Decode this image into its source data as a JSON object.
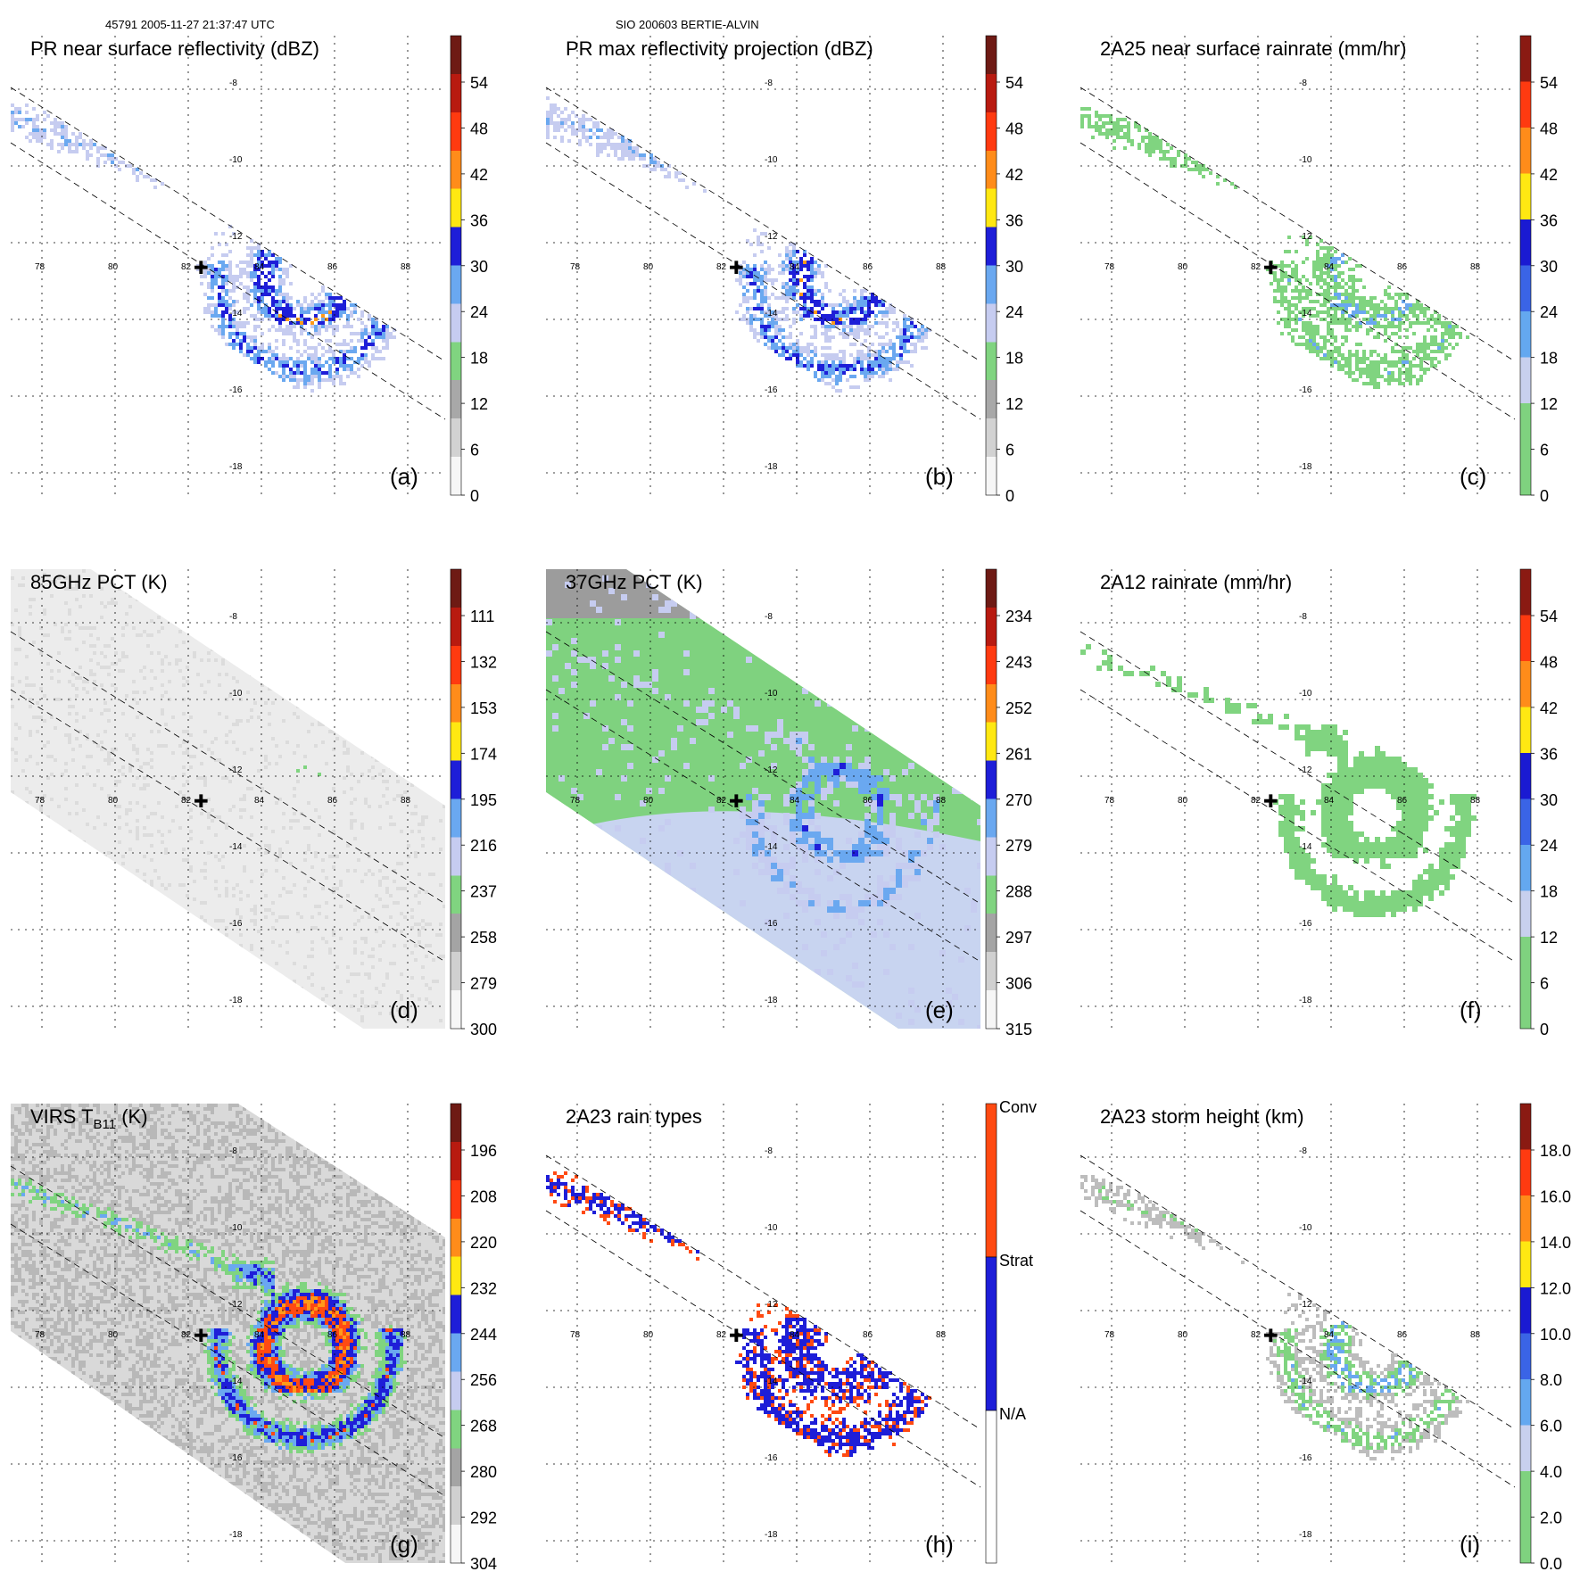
{
  "header": {
    "left": "45791 2005-11-27 21:37:47 UTC",
    "center": "SIO 200603 BERTIE-ALVIN"
  },
  "chart_data": [
    {
      "type": "heatmap",
      "id": "a",
      "title": "PR near surface reflectivity (dBZ)",
      "panel_label": "(a)",
      "field": "pr",
      "colorbar": {
        "labels": [
          "54",
          "48",
          "42",
          "36",
          "30",
          "24",
          "18",
          "12",
          "6",
          "0"
        ],
        "range": [
          0,
          60
        ]
      },
      "lon_ticks": [
        "78",
        "80",
        "82",
        "84",
        "86",
        "88"
      ],
      "lat_ticks": [
        "-8",
        "-10",
        "-12",
        "-14",
        "-16",
        "-18"
      ],
      "storm_center_lon": 83,
      "storm_center_lat": -12.5
    },
    {
      "type": "heatmap",
      "id": "b",
      "title": "PR max reflectivity projection (dBZ)",
      "panel_label": "(b)",
      "field": "pr",
      "colorbar": {
        "labels": [
          "54",
          "48",
          "42",
          "36",
          "30",
          "24",
          "18",
          "12",
          "6",
          "0"
        ],
        "range": [
          0,
          60
        ]
      },
      "lon_ticks": [
        "78",
        "80",
        "82",
        "84",
        "86",
        "88"
      ],
      "lat_ticks": [
        "-8",
        "-10",
        "-12",
        "-14",
        "-16",
        "-18"
      ],
      "storm_center_lon": 83,
      "storm_center_lat": -12.5
    },
    {
      "type": "heatmap",
      "id": "c",
      "title": "2A25 near surface rainrate (mm/hr)",
      "panel_label": "(c)",
      "field": "pr",
      "colorbar": {
        "labels": [
          "54",
          "48",
          "42",
          "36",
          "30",
          "24",
          "18",
          "12",
          "6",
          "0"
        ],
        "range": [
          0,
          60
        ]
      },
      "lon_ticks": [
        "78",
        "80",
        "82",
        "84",
        "86",
        "88"
      ],
      "lat_ticks": [
        "-8",
        "-10",
        "-12",
        "-14",
        "-16",
        "-18"
      ],
      "storm_center_lon": 83,
      "storm_center_lat": -12.5
    },
    {
      "type": "heatmap",
      "id": "d",
      "title": "85GHz PCT (K)",
      "panel_label": "(d)",
      "field": "tmi85",
      "colorbar": {
        "labels": [
          "111",
          "132",
          "153",
          "174",
          "195",
          "216",
          "237",
          "258",
          "279",
          "300"
        ],
        "range": [
          300,
          90
        ]
      },
      "lon_ticks": [
        "78",
        "80",
        "82",
        "84",
        "86",
        "88"
      ],
      "lat_ticks": [
        "-8",
        "-10",
        "-12",
        "-14",
        "-16",
        "-18"
      ],
      "storm_center_lon": 83,
      "storm_center_lat": -12.5
    },
    {
      "type": "heatmap",
      "id": "e",
      "title": "37GHz PCT (K)",
      "panel_label": "(e)",
      "field": "tmi37",
      "colorbar": {
        "labels": [
          "234",
          "243",
          "252",
          "261",
          "270",
          "279",
          "288",
          "297",
          "306",
          "315"
        ],
        "range": [
          315,
          225
        ]
      },
      "lon_ticks": [
        "78",
        "80",
        "82",
        "84",
        "86",
        "88"
      ],
      "lat_ticks": [
        "-8",
        "-10",
        "-12",
        "-14",
        "-16",
        "-18"
      ],
      "storm_center_lon": 83,
      "storm_center_lat": -12.5
    },
    {
      "type": "heatmap",
      "id": "f",
      "title": "2A12 rainrate (mm/hr)",
      "panel_label": "(f)",
      "field": "rain12",
      "colorbar": {
        "labels": [
          "54",
          "48",
          "42",
          "36",
          "30",
          "24",
          "18",
          "12",
          "6",
          "0"
        ],
        "range": [
          0,
          60
        ]
      },
      "lon_ticks": [
        "78",
        "80",
        "82",
        "84",
        "86",
        "88"
      ],
      "lat_ticks": [
        "-8",
        "-10",
        "-12",
        "-14",
        "-16",
        "-18"
      ],
      "storm_center_lon": 83,
      "storm_center_lat": -12.5
    },
    {
      "type": "heatmap",
      "id": "g",
      "title_main": "VIRS T",
      "title_sub": "B11",
      "title_unit": " (K)",
      "panel_label": "(g)",
      "field": "virs",
      "colorbar": {
        "labels": [
          "196",
          "208",
          "220",
          "232",
          "244",
          "256",
          "268",
          "280",
          "292",
          "304"
        ],
        "range": [
          304,
          184
        ]
      },
      "lon_ticks": [
        "78",
        "80",
        "82",
        "84",
        "86",
        "88"
      ],
      "lat_ticks": [
        "-8",
        "-10",
        "-12",
        "-14",
        "-16",
        "-18"
      ],
      "storm_center_lon": 83,
      "storm_center_lat": -12.5
    },
    {
      "type": "heatmap",
      "id": "h",
      "title": "2A23 rain types",
      "panel_label": "(h)",
      "field": "types",
      "colorbar": {
        "labels": [
          "Conv",
          "Strat",
          "N/A"
        ],
        "categorical": true
      },
      "lon_ticks": [
        "78",
        "80",
        "82",
        "84",
        "86",
        "88"
      ],
      "lat_ticks": [
        "-8",
        "-10",
        "-12",
        "-14",
        "-16",
        "-18"
      ],
      "storm_center_lon": 83,
      "storm_center_lat": -12.5
    },
    {
      "type": "heatmap",
      "id": "i",
      "title": "2A23 storm height (km)",
      "panel_label": "(i)",
      "field": "height",
      "colorbar": {
        "labels": [
          "18.0",
          "16.0",
          "14.0",
          "12.0",
          "10.0",
          "8.0",
          "6.0",
          "4.0",
          "2.0",
          "0.0"
        ],
        "range": [
          0,
          20
        ]
      },
      "lon_ticks": [
        "78",
        "80",
        "82",
        "84",
        "86",
        "88"
      ],
      "lat_ticks": [
        "-8",
        "-10",
        "-12",
        "-14",
        "-16",
        "-18"
      ],
      "storm_center_lon": 83,
      "storm_center_lat": -12.5
    }
  ]
}
